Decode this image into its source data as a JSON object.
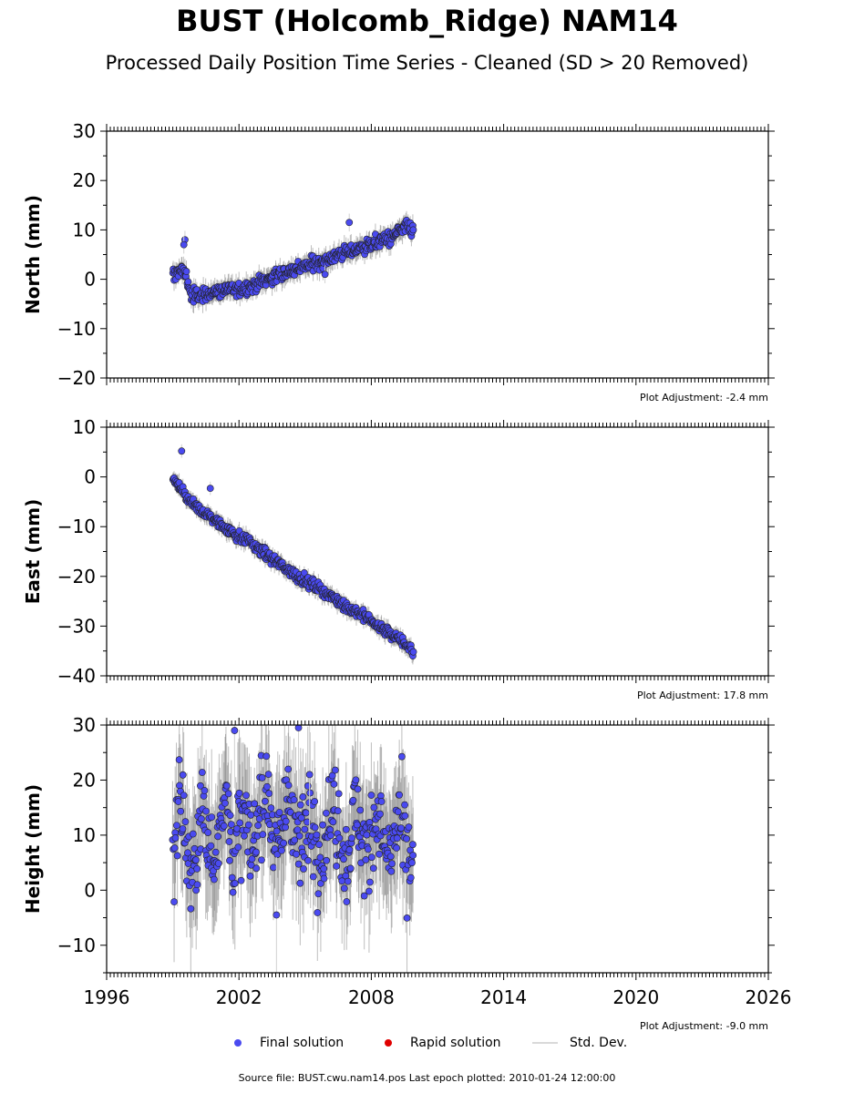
{
  "title": "BUST (Holcomb_Ridge) NAM14",
  "subtitle": "Processed Daily Position Time Series - Cleaned (SD > 20 Removed)",
  "legend": {
    "final": "Final solution",
    "rapid": "Rapid solution",
    "std": "Std. Dev."
  },
  "footer": "Source file: BUST.cwu.nam14.pos  Last epoch plotted: 2010-01-24 12:00:00",
  "colors": {
    "final": "#4a4af0",
    "rapid": "#e00000",
    "std": "#d0d0d0",
    "marker_edge": "#222222"
  },
  "chart_data": [
    {
      "type": "scatter",
      "ylabel": "North (mm)",
      "xlim": [
        1996,
        2026
      ],
      "ylim": [
        -20,
        30
      ],
      "yticks": [
        -20,
        -10,
        0,
        10,
        20,
        30
      ],
      "adjustment": "Plot Adjustment: -2.4 mm",
      "series": [
        {
          "name": "Final solution",
          "x": [
            1999.0,
            1999.3,
            1999.6,
            1999.8,
            2000.0,
            2000.5,
            2001.0,
            2001.5,
            2002.0,
            2002.5,
            2003.0,
            2003.5,
            2004.0,
            2004.5,
            2005.0,
            2005.5,
            2006.0,
            2006.5,
            2007.0,
            2007.5,
            2008.0,
            2008.5,
            2009.0,
            2009.5,
            2009.9
          ],
          "y": [
            0.5,
            2.0,
            1.0,
            -3.0,
            -3.5,
            -3.0,
            -2.5,
            -2.0,
            -2.0,
            -1.5,
            -0.5,
            0.5,
            1.0,
            2.0,
            2.5,
            3.5,
            4.0,
            5.0,
            5.5,
            6.5,
            7.0,
            8.0,
            8.5,
            10.5,
            10.0
          ],
          "spread": 1.2
        }
      ],
      "outliers": {
        "x": [
          1999.55,
          1999.5,
          2007.0,
          2005.9
        ],
        "y": [
          8.0,
          7.0,
          11.5,
          1.0
        ]
      }
    },
    {
      "type": "scatter",
      "ylabel": "East (mm)",
      "xlim": [
        1996,
        2026
      ],
      "ylim": [
        -40,
        10
      ],
      "yticks": [
        -40,
        -30,
        -20,
        -10,
        0,
        10
      ],
      "adjustment": "Plot Adjustment: 17.8 mm",
      "series": [
        {
          "name": "Final solution",
          "x": [
            1999.0,
            1999.3,
            1999.6,
            2000.0,
            2000.5,
            2001.0,
            2001.5,
            2002.0,
            2002.5,
            2003.0,
            2003.5,
            2004.0,
            2004.5,
            2005.0,
            2005.5,
            2006.0,
            2006.5,
            2007.0,
            2007.5,
            2008.0,
            2008.5,
            2009.0,
            2009.5,
            2009.9
          ],
          "y": [
            -0.5,
            -2.0,
            -4.0,
            -6.0,
            -7.5,
            -9.0,
            -10.5,
            -12.0,
            -13.0,
            -15.0,
            -16.5,
            -18.0,
            -19.5,
            -21.0,
            -22.0,
            -23.5,
            -25.0,
            -26.5,
            -27.5,
            -29.0,
            -30.5,
            -32.0,
            -33.5,
            -35.0
          ],
          "spread": 0.9
        }
      ],
      "outliers": {
        "x": [
          1999.4,
          2000.7
        ],
        "y": [
          5.2,
          -2.3
        ]
      }
    },
    {
      "type": "scatter",
      "ylabel": "Height (mm)",
      "xlim": [
        1996,
        2026
      ],
      "ylim": [
        -15,
        30
      ],
      "yticks": [
        -10,
        0,
        10,
        20,
        30
      ],
      "xticks": [
        1996,
        2002,
        2008,
        2014,
        2020,
        2026
      ],
      "adjustment": "Plot Adjustment: -9.0 mm",
      "series": [
        {
          "name": "Final solution",
          "x": [
            1999.0,
            1999.3,
            1999.6,
            2000.0,
            2000.5,
            2001.0,
            2001.5,
            2002.0,
            2002.5,
            2003.0,
            2003.5,
            2004.0,
            2004.5,
            2005.0,
            2005.5,
            2006.0,
            2006.5,
            2007.0,
            2007.5,
            2008.0,
            2008.5,
            2009.0,
            2009.5,
            2009.9
          ],
          "y": [
            5,
            14,
            11,
            6,
            12,
            9,
            14,
            10,
            8,
            15,
            13,
            12,
            14,
            9,
            10,
            11,
            12,
            8,
            12,
            9,
            10,
            8,
            9,
            8
          ],
          "spread": 7.0
        }
      ],
      "outliers": {
        "x": [
          2001.8,
          2004.7,
          2005.2,
          2003.7
        ],
        "y": [
          29.0,
          29.5,
          21.0,
          -4.5
        ]
      }
    }
  ]
}
